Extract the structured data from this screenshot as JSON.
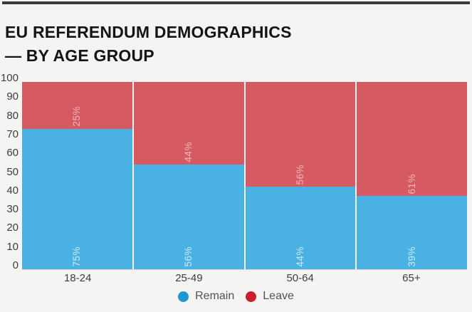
{
  "header": {
    "title_line1": "EU REFERENDUM DEMOGRAPHICS",
    "title_line2": "— BY AGE GROUP"
  },
  "colors": {
    "background": "#f4f4f2",
    "top_rule": "#3a3a3c",
    "remain_bar": "#4ab2e2",
    "leave_bar": "#d65a62",
    "remain_value_label": "#cdeaf8",
    "leave_value_label": "#f2b7bc",
    "legend_remain_dot": "#2095d3",
    "legend_leave_dot": "#c8202c",
    "axis_text": "#3d3d3f"
  },
  "chart_data": {
    "type": "bar",
    "stacked": true,
    "percent_stacked": true,
    "title": "EU REFERENDUM DEMOGRAPHICS — BY AGE GROUP",
    "categories": [
      "18-24",
      "25-49",
      "50-64",
      "65+"
    ],
    "series": [
      {
        "name": "Remain",
        "color": "#4ab2e2",
        "label_color": "#cdeaf8",
        "values": [
          75,
          56,
          44,
          39
        ],
        "value_labels": [
          "75%",
          "56%",
          "44%",
          "39%"
        ]
      },
      {
        "name": "Leave",
        "color": "#d65a62",
        "label_color": "#f2b7bc",
        "values": [
          25,
          44,
          56,
          61
        ],
        "value_labels": [
          "25%",
          "44%",
          "56%",
          "61%"
        ]
      }
    ],
    "xlabel": "",
    "ylabel": "",
    "ylim": [
      0,
      100
    ],
    "yticks": [
      0,
      10,
      20,
      30,
      40,
      50,
      60,
      70,
      80,
      90,
      100
    ],
    "grid": false,
    "legend": {
      "position": "bottom-center",
      "items": [
        {
          "label": "Remain",
          "color": "#2095d3"
        },
        {
          "label": "Leave",
          "color": "#c8202c"
        }
      ]
    }
  }
}
